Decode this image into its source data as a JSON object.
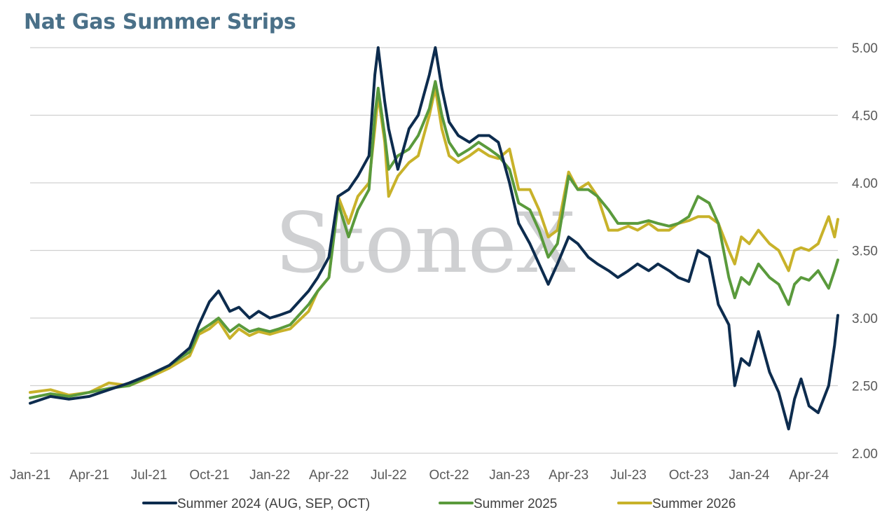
{
  "chart_data": {
    "type": "line",
    "title": "Nat Gas Summer Strips",
    "watermark": "StoneX",
    "x_ticks": [
      "Jan-21",
      "Apr-21",
      "Jul-21",
      "Oct-21",
      "Jan-22",
      "Apr-22",
      "Jul-22",
      "Oct-22",
      "Jan-23",
      "Apr-23",
      "Jul-23",
      "Oct-23",
      "Jan-24",
      "Apr-24"
    ],
    "y_ticks": [
      "5.00",
      "4.50",
      "4.00",
      "3.50",
      "3.00",
      "2.50",
      "2.00"
    ],
    "ylim": [
      2.0,
      5.0
    ],
    "xlim": [
      "2021-01-01",
      "2024-05-15"
    ],
    "grid": true,
    "y_axis_side": "right",
    "legend_position": "bottom",
    "colors": {
      "s2024": "#0d2c4e",
      "s2025": "#5a9a3c",
      "s2026": "#c8b22a"
    },
    "series": [
      {
        "name": "Summer 2024 (AUG, SEP, OCT)",
        "points": [
          [
            "2021-01-01",
            2.37
          ],
          [
            "2021-02-01",
            2.42
          ],
          [
            "2021-03-01",
            2.4
          ],
          [
            "2021-04-01",
            2.42
          ],
          [
            "2021-05-01",
            2.47
          ],
          [
            "2021-06-01",
            2.52
          ],
          [
            "2021-07-01",
            2.58
          ],
          [
            "2021-08-01",
            2.65
          ],
          [
            "2021-09-01",
            2.78
          ],
          [
            "2021-09-15",
            2.95
          ],
          [
            "2021-10-01",
            3.12
          ],
          [
            "2021-10-15",
            3.2
          ],
          [
            "2021-11-01",
            3.05
          ],
          [
            "2021-11-15",
            3.08
          ],
          [
            "2021-12-01",
            3.0
          ],
          [
            "2021-12-15",
            3.05
          ],
          [
            "2022-01-01",
            3.0
          ],
          [
            "2022-01-15",
            3.02
          ],
          [
            "2022-02-01",
            3.05
          ],
          [
            "2022-03-01",
            3.2
          ],
          [
            "2022-03-15",
            3.3
          ],
          [
            "2022-04-01",
            3.45
          ],
          [
            "2022-04-15",
            3.9
          ],
          [
            "2022-05-01",
            3.95
          ],
          [
            "2022-05-15",
            4.05
          ],
          [
            "2022-06-01",
            4.2
          ],
          [
            "2022-06-10",
            4.8
          ],
          [
            "2022-06-15",
            5.0
          ],
          [
            "2022-06-25",
            4.6
          ],
          [
            "2022-07-01",
            4.4
          ],
          [
            "2022-07-15",
            4.1
          ],
          [
            "2022-08-01",
            4.4
          ],
          [
            "2022-08-15",
            4.5
          ],
          [
            "2022-09-01",
            4.8
          ],
          [
            "2022-09-10",
            5.0
          ],
          [
            "2022-09-20",
            4.7
          ],
          [
            "2022-10-01",
            4.45
          ],
          [
            "2022-10-15",
            4.35
          ],
          [
            "2022-11-01",
            4.3
          ],
          [
            "2022-11-15",
            4.35
          ],
          [
            "2022-12-01",
            4.35
          ],
          [
            "2022-12-15",
            4.3
          ],
          [
            "2023-01-01",
            4.0
          ],
          [
            "2023-01-15",
            3.7
          ],
          [
            "2023-02-01",
            3.55
          ],
          [
            "2023-02-15",
            3.4
          ],
          [
            "2023-03-01",
            3.25
          ],
          [
            "2023-03-15",
            3.4
          ],
          [
            "2023-04-01",
            3.6
          ],
          [
            "2023-04-15",
            3.55
          ],
          [
            "2023-05-01",
            3.45
          ],
          [
            "2023-05-15",
            3.4
          ],
          [
            "2023-06-01",
            3.35
          ],
          [
            "2023-06-15",
            3.3
          ],
          [
            "2023-07-01",
            3.35
          ],
          [
            "2023-07-15",
            3.4
          ],
          [
            "2023-08-01",
            3.35
          ],
          [
            "2023-08-15",
            3.4
          ],
          [
            "2023-09-01",
            3.35
          ],
          [
            "2023-09-15",
            3.3
          ],
          [
            "2023-10-01",
            3.27
          ],
          [
            "2023-10-15",
            3.5
          ],
          [
            "2023-11-01",
            3.45
          ],
          [
            "2023-11-15",
            3.1
          ],
          [
            "2023-12-01",
            2.95
          ],
          [
            "2023-12-10",
            2.5
          ],
          [
            "2023-12-20",
            2.7
          ],
          [
            "2024-01-01",
            2.65
          ],
          [
            "2024-01-15",
            2.9
          ],
          [
            "2024-02-01",
            2.6
          ],
          [
            "2024-02-15",
            2.45
          ],
          [
            "2024-03-01",
            2.18
          ],
          [
            "2024-03-10",
            2.4
          ],
          [
            "2024-03-20",
            2.55
          ],
          [
            "2024-04-01",
            2.35
          ],
          [
            "2024-04-15",
            2.3
          ],
          [
            "2024-05-01",
            2.5
          ],
          [
            "2024-05-10",
            2.8
          ],
          [
            "2024-05-15",
            3.02
          ]
        ]
      },
      {
        "name": "Summer 2025",
        "points": [
          [
            "2021-01-01",
            2.41
          ],
          [
            "2021-02-01",
            2.44
          ],
          [
            "2021-03-01",
            2.42
          ],
          [
            "2021-04-01",
            2.45
          ],
          [
            "2021-05-01",
            2.48
          ],
          [
            "2021-06-01",
            2.5
          ],
          [
            "2021-07-01",
            2.57
          ],
          [
            "2021-08-01",
            2.65
          ],
          [
            "2021-09-01",
            2.75
          ],
          [
            "2021-09-15",
            2.9
          ],
          [
            "2021-10-01",
            2.95
          ],
          [
            "2021-10-15",
            3.0
          ],
          [
            "2021-11-01",
            2.9
          ],
          [
            "2021-11-15",
            2.95
          ],
          [
            "2021-12-01",
            2.9
          ],
          [
            "2021-12-15",
            2.92
          ],
          [
            "2022-01-01",
            2.9
          ],
          [
            "2022-01-15",
            2.92
          ],
          [
            "2022-02-01",
            2.95
          ],
          [
            "2022-03-01",
            3.1
          ],
          [
            "2022-03-15",
            3.2
          ],
          [
            "2022-04-01",
            3.3
          ],
          [
            "2022-04-15",
            3.85
          ],
          [
            "2022-05-01",
            3.6
          ],
          [
            "2022-05-15",
            3.8
          ],
          [
            "2022-06-01",
            3.95
          ],
          [
            "2022-06-10",
            4.5
          ],
          [
            "2022-06-15",
            4.7
          ],
          [
            "2022-06-25",
            4.35
          ],
          [
            "2022-07-01",
            4.1
          ],
          [
            "2022-07-15",
            4.2
          ],
          [
            "2022-08-01",
            4.25
          ],
          [
            "2022-08-15",
            4.35
          ],
          [
            "2022-09-01",
            4.55
          ],
          [
            "2022-09-10",
            4.75
          ],
          [
            "2022-09-20",
            4.5
          ],
          [
            "2022-10-01",
            4.3
          ],
          [
            "2022-10-15",
            4.2
          ],
          [
            "2022-11-01",
            4.25
          ],
          [
            "2022-11-15",
            4.3
          ],
          [
            "2022-12-01",
            4.25
          ],
          [
            "2022-12-15",
            4.2
          ],
          [
            "2023-01-01",
            4.1
          ],
          [
            "2023-01-15",
            3.85
          ],
          [
            "2023-02-01",
            3.8
          ],
          [
            "2023-02-15",
            3.65
          ],
          [
            "2023-03-01",
            3.45
          ],
          [
            "2023-03-15",
            3.55
          ],
          [
            "2023-04-01",
            4.05
          ],
          [
            "2023-04-15",
            3.95
          ],
          [
            "2023-05-01",
            3.95
          ],
          [
            "2023-05-15",
            3.9
          ],
          [
            "2023-06-01",
            3.8
          ],
          [
            "2023-06-15",
            3.7
          ],
          [
            "2023-07-01",
            3.7
          ],
          [
            "2023-07-15",
            3.7
          ],
          [
            "2023-08-01",
            3.72
          ],
          [
            "2023-08-15",
            3.7
          ],
          [
            "2023-09-01",
            3.68
          ],
          [
            "2023-09-15",
            3.7
          ],
          [
            "2023-10-01",
            3.75
          ],
          [
            "2023-10-15",
            3.9
          ],
          [
            "2023-11-01",
            3.85
          ],
          [
            "2023-11-15",
            3.7
          ],
          [
            "2023-12-01",
            3.3
          ],
          [
            "2023-12-10",
            3.15
          ],
          [
            "2023-12-20",
            3.3
          ],
          [
            "2024-01-01",
            3.25
          ],
          [
            "2024-01-15",
            3.4
          ],
          [
            "2024-02-01",
            3.3
          ],
          [
            "2024-02-15",
            3.25
          ],
          [
            "2024-03-01",
            3.1
          ],
          [
            "2024-03-10",
            3.25
          ],
          [
            "2024-03-20",
            3.3
          ],
          [
            "2024-04-01",
            3.28
          ],
          [
            "2024-04-15",
            3.35
          ],
          [
            "2024-05-01",
            3.22
          ],
          [
            "2024-05-10",
            3.35
          ],
          [
            "2024-05-15",
            3.43
          ]
        ]
      },
      {
        "name": "Summer 2026",
        "points": [
          [
            "2021-01-01",
            2.45
          ],
          [
            "2021-02-01",
            2.47
          ],
          [
            "2021-03-01",
            2.43
          ],
          [
            "2021-04-01",
            2.45
          ],
          [
            "2021-05-01",
            2.52
          ],
          [
            "2021-06-01",
            2.5
          ],
          [
            "2021-07-01",
            2.56
          ],
          [
            "2021-08-01",
            2.63
          ],
          [
            "2021-09-01",
            2.72
          ],
          [
            "2021-09-15",
            2.88
          ],
          [
            "2021-10-01",
            2.92
          ],
          [
            "2021-10-15",
            2.98
          ],
          [
            "2021-11-01",
            2.85
          ],
          [
            "2021-11-15",
            2.92
          ],
          [
            "2021-12-01",
            2.87
          ],
          [
            "2021-12-15",
            2.9
          ],
          [
            "2022-01-01",
            2.88
          ],
          [
            "2022-01-15",
            2.9
          ],
          [
            "2022-02-01",
            2.92
          ],
          [
            "2022-03-01",
            3.05
          ],
          [
            "2022-03-15",
            3.2
          ],
          [
            "2022-04-01",
            3.3
          ],
          [
            "2022-04-15",
            3.9
          ],
          [
            "2022-05-01",
            3.7
          ],
          [
            "2022-05-15",
            3.9
          ],
          [
            "2022-06-01",
            4.0
          ],
          [
            "2022-06-10",
            4.4
          ],
          [
            "2022-06-15",
            4.65
          ],
          [
            "2022-06-25",
            4.3
          ],
          [
            "2022-07-01",
            3.9
          ],
          [
            "2022-07-15",
            4.05
          ],
          [
            "2022-08-01",
            4.15
          ],
          [
            "2022-08-15",
            4.2
          ],
          [
            "2022-09-01",
            4.5
          ],
          [
            "2022-09-10",
            4.7
          ],
          [
            "2022-09-20",
            4.4
          ],
          [
            "2022-10-01",
            4.2
          ],
          [
            "2022-10-15",
            4.15
          ],
          [
            "2022-11-01",
            4.2
          ],
          [
            "2022-11-15",
            4.25
          ],
          [
            "2022-12-01",
            4.2
          ],
          [
            "2022-12-15",
            4.18
          ],
          [
            "2023-01-01",
            4.25
          ],
          [
            "2023-01-15",
            3.95
          ],
          [
            "2023-02-01",
            3.95
          ],
          [
            "2023-02-15",
            3.8
          ],
          [
            "2023-03-01",
            3.6
          ],
          [
            "2023-03-15",
            3.65
          ],
          [
            "2023-04-01",
            4.08
          ],
          [
            "2023-04-15",
            3.95
          ],
          [
            "2023-05-01",
            4.0
          ],
          [
            "2023-05-15",
            3.9
          ],
          [
            "2023-06-01",
            3.65
          ],
          [
            "2023-06-15",
            3.65
          ],
          [
            "2023-07-01",
            3.68
          ],
          [
            "2023-07-15",
            3.65
          ],
          [
            "2023-08-01",
            3.7
          ],
          [
            "2023-08-15",
            3.65
          ],
          [
            "2023-09-01",
            3.65
          ],
          [
            "2023-09-15",
            3.7
          ],
          [
            "2023-10-01",
            3.72
          ],
          [
            "2023-10-15",
            3.75
          ],
          [
            "2023-11-01",
            3.75
          ],
          [
            "2023-11-15",
            3.7
          ],
          [
            "2023-12-01",
            3.5
          ],
          [
            "2023-12-10",
            3.4
          ],
          [
            "2023-12-20",
            3.6
          ],
          [
            "2024-01-01",
            3.55
          ],
          [
            "2024-01-15",
            3.65
          ],
          [
            "2024-02-01",
            3.55
          ],
          [
            "2024-02-15",
            3.5
          ],
          [
            "2024-03-01",
            3.35
          ],
          [
            "2024-03-10",
            3.5
          ],
          [
            "2024-03-20",
            3.52
          ],
          [
            "2024-04-01",
            3.5
          ],
          [
            "2024-04-15",
            3.55
          ],
          [
            "2024-05-01",
            3.75
          ],
          [
            "2024-05-10",
            3.6
          ],
          [
            "2024-05-15",
            3.73
          ]
        ]
      }
    ]
  }
}
